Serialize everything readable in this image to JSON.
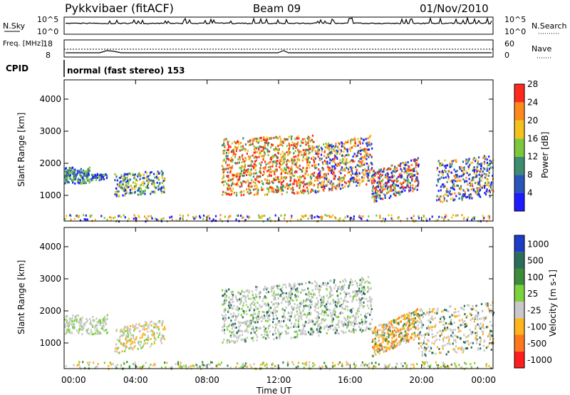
{
  "header": {
    "station": "Pykkvibaer (fitACF)",
    "beam": "Beam 09",
    "date": "01/Nov/2010"
  },
  "chart_data": [
    {
      "type": "line",
      "name": "sky-noise-panel",
      "left_label": "N.Sky",
      "right_label": "N.Search",
      "left_ticks": [
        "10^5",
        "10^0"
      ],
      "right_ticks": [
        "10^5",
        "10^0"
      ],
      "note": "baseline near 10^5 with sparse upward spikes"
    },
    {
      "type": "line",
      "name": "frequency-panel",
      "left_label": "Freq. [MHz]",
      "right_label": "Nave",
      "left_ticks": [
        "18",
        "8"
      ],
      "right_ticks": [
        "60",
        "0"
      ]
    },
    {
      "type": "heatmap",
      "name": "power",
      "cpid_label": "CPID",
      "cpid_text": "normal (fast stereo) 153",
      "ylabel": "Slant Range [km]",
      "ylim": [
        200,
        4600
      ],
      "yticks": [
        "1000",
        "2000",
        "3000",
        "4000"
      ],
      "colorbar_label": "Power [dB]",
      "colorbar_ticks": [
        "4",
        "8",
        "12",
        "16",
        "20",
        "24",
        "28"
      ],
      "colorbar_colors": [
        "#1c1cff",
        "#2a55b8",
        "#3c8c6e",
        "#7cc83c",
        "#f4c21c",
        "#ff8a1c",
        "#ff2a1c"
      ]
    },
    {
      "type": "heatmap",
      "name": "velocity",
      "ylabel": "Slant Range [km]",
      "ylim": [
        200,
        4600
      ],
      "yticks": [
        "1000",
        "2000",
        "3000",
        "4000"
      ],
      "colorbar_label": "Velocity [m s-1]",
      "colorbar_ticks": [
        "1000",
        "500",
        "100",
        "25",
        "-25",
        "-100",
        "-500",
        "-1000"
      ],
      "colorbar_colors": [
        "#1e3cc8",
        "#2c6e5a",
        "#3c8c3c",
        "#7cd23c",
        "#c8c8c8",
        "#ffb41e",
        "#ff781e",
        "#ff1e1e"
      ]
    }
  ],
  "xaxis": {
    "label": "Time UT",
    "ticks": [
      "00:00",
      "04:00",
      "08:00",
      "12:00",
      "16:00",
      "20:00",
      "00:00"
    ]
  }
}
